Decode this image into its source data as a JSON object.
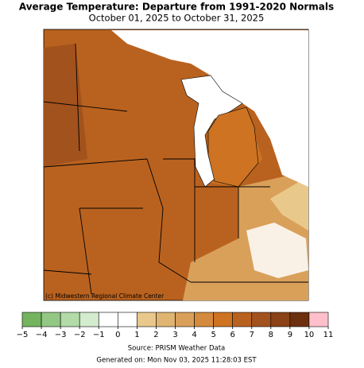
{
  "title": "Average Temperature: Departure from 1991-2020 Normals",
  "subtitle": "October 01, 2025 to October 31, 2025",
  "credit": "(c) Midwestern Regional Climate Center",
  "colorbar": {
    "ticks": [
      {
        "value": -5,
        "label": "−5"
      },
      {
        "value": -4,
        "label": "−4"
      },
      {
        "value": -3,
        "label": "−3"
      },
      {
        "value": -2,
        "label": "−2"
      },
      {
        "value": -1,
        "label": "−1"
      },
      0,
      1,
      2,
      3,
      4,
      5,
      6,
      7,
      8,
      9,
      10,
      11
    ],
    "colors": [
      "#74b45f",
      "#92c883",
      "#b2dba7",
      "#d3ecce",
      "#ffffff",
      "#ffffff",
      "#e9c98b",
      "#e0b471",
      "#d9a05a",
      "#d48b3d",
      "#cd7322",
      "#b9621f",
      "#a2521d",
      "#8a4216",
      "#6d300e",
      "#ffc0cb"
    ]
  },
  "source": "Source: PRISM Weather Data",
  "generated": "Generated on: Mon Nov 03, 2025 11:28:03 EST"
}
